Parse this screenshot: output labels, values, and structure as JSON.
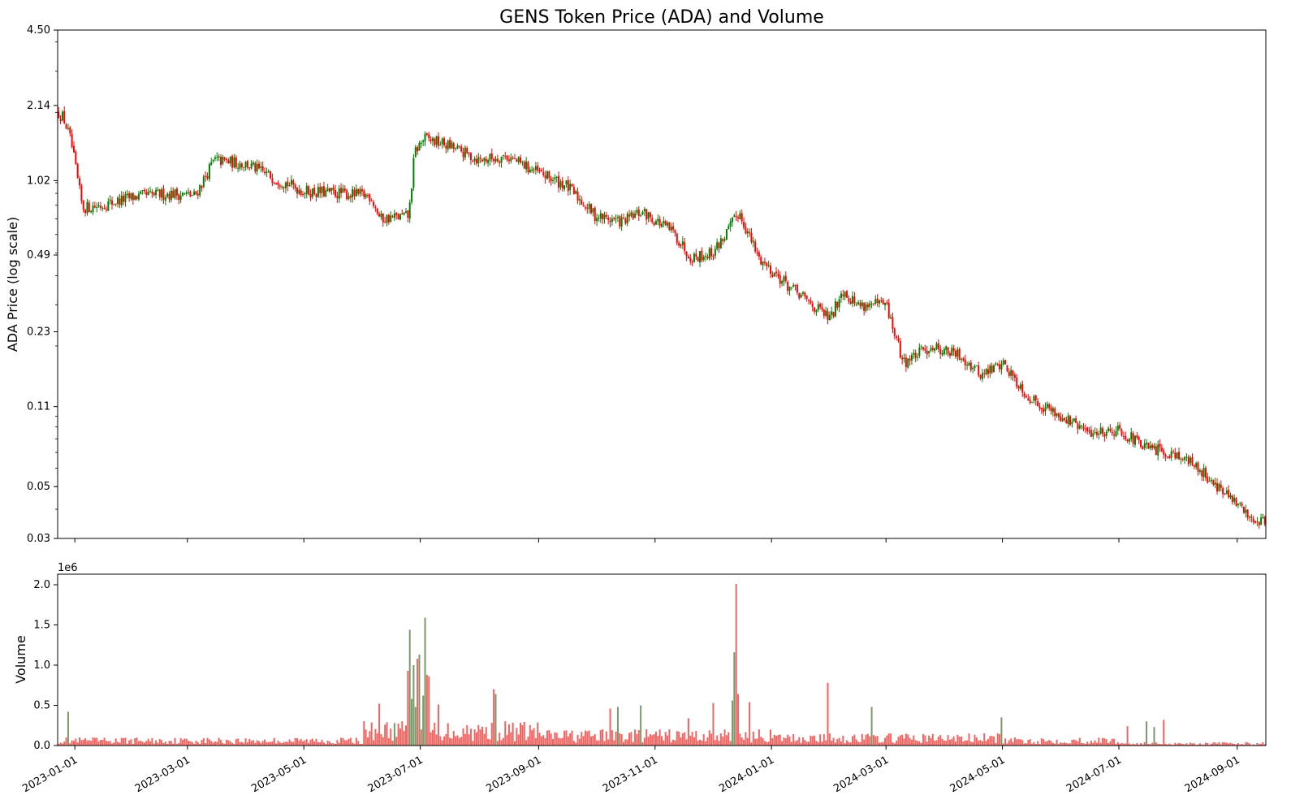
{
  "chart_data": [
    {
      "type": "candlestick",
      "title": "GENS Token Price (ADA) and Volume",
      "ylabel": "ADA Price (log scale)",
      "yscale": "log",
      "ylim": [
        0.03,
        4.5
      ],
      "yticks": [
        "0.03",
        "0.05",
        "0.11",
        "0.23",
        "0.49",
        "1.02",
        "2.14",
        "4.50"
      ],
      "xlim": [
        "2022-12-23",
        "2024-09-16"
      ],
      "xticks": [
        "2023-01-01",
        "2023-03-01",
        "2023-05-01",
        "2023-07-01",
        "2023-09-01",
        "2023-11-01",
        "2024-01-01",
        "2024-03-01",
        "2024-05-01",
        "2024-07-01",
        "2024-09-01"
      ],
      "up_color": "#008000",
      "down_color": "#ff0000",
      "trend": {
        "x": [
          "2022-12-23",
          "2022-12-26",
          "2022-12-30",
          "2023-01-05",
          "2023-01-15",
          "2023-02-01",
          "2023-02-20",
          "2023-03-05",
          "2023-03-15",
          "2023-04-01",
          "2023-04-10",
          "2023-05-01",
          "2023-05-20",
          "2023-06-05",
          "2023-06-10",
          "2023-06-25",
          "2023-06-28",
          "2023-07-03",
          "2023-07-15",
          "2023-08-01",
          "2023-08-15",
          "2023-09-01",
          "2023-09-15",
          "2023-10-01",
          "2023-10-15",
          "2023-10-25",
          "2023-11-10",
          "2023-11-20",
          "2023-12-01",
          "2023-12-08",
          "2023-12-15",
          "2023-12-25",
          "2024-01-10",
          "2024-02-01",
          "2024-02-07",
          "2024-02-15",
          "2024-03-01",
          "2024-03-10",
          "2024-03-25",
          "2024-04-10",
          "2024-04-20",
          "2024-05-01",
          "2024-05-15",
          "2024-06-01",
          "2024-06-15",
          "2024-07-01",
          "2024-07-15",
          "2024-08-01",
          "2024-08-15",
          "2024-08-25",
          "2024-09-05",
          "2024-09-10",
          "2024-09-16"
        ],
        "y": [
          2.0,
          1.9,
          1.5,
          0.78,
          0.8,
          0.87,
          0.9,
          0.88,
          1.25,
          1.2,
          1.1,
          0.92,
          0.9,
          0.88,
          0.7,
          0.72,
          1.35,
          1.55,
          1.45,
          1.25,
          1.3,
          1.1,
          0.98,
          0.72,
          0.68,
          0.75,
          0.62,
          0.48,
          0.5,
          0.6,
          0.75,
          0.48,
          0.36,
          0.26,
          0.35,
          0.3,
          0.3,
          0.17,
          0.2,
          0.18,
          0.15,
          0.17,
          0.12,
          0.1,
          0.085,
          0.088,
          0.073,
          0.069,
          0.057,
          0.047,
          0.039,
          0.036,
          0.036
        ]
      }
    },
    {
      "type": "bar",
      "ylabel": "Volume",
      "scale_label": "1e6",
      "yticks": [
        "0.0",
        "0.5",
        "1.0",
        "1.5",
        "2.0"
      ],
      "ylim": [
        0,
        2100000
      ],
      "xlim": [
        "2022-12-23",
        "2024-09-16"
      ],
      "xticks": [
        "2023-01-01",
        "2023-03-01",
        "2023-05-01",
        "2023-07-01",
        "2023-09-01",
        "2023-11-01",
        "2024-01-01",
        "2024-03-01",
        "2024-05-01",
        "2024-07-01",
        "2024-09-01"
      ],
      "down_color": "#ef5350",
      "up_color": "#6b8e5a",
      "baseline": 60000,
      "spikes": [
        {
          "x": "2022-12-28",
          "value": 420000
        },
        {
          "x": "2023-06-09",
          "value": 520000
        },
        {
          "x": "2023-06-17",
          "value": 280000
        },
        {
          "x": "2023-06-24",
          "value": 930000
        },
        {
          "x": "2023-06-25",
          "value": 1440000
        },
        {
          "x": "2023-06-26",
          "value": 580000
        },
        {
          "x": "2023-06-27",
          "value": 1000000
        },
        {
          "x": "2023-06-28",
          "value": 480000
        },
        {
          "x": "2023-06-29",
          "value": 1080000
        },
        {
          "x": "2023-06-30",
          "value": 1130000
        },
        {
          "x": "2023-07-02",
          "value": 620000
        },
        {
          "x": "2023-07-03",
          "value": 1590000
        },
        {
          "x": "2023-07-04",
          "value": 880000
        },
        {
          "x": "2023-07-05",
          "value": 860000
        },
        {
          "x": "2023-07-10",
          "value": 510000
        },
        {
          "x": "2023-08-08",
          "value": 700000
        },
        {
          "x": "2023-08-09",
          "value": 640000
        },
        {
          "x": "2023-10-08",
          "value": 460000
        },
        {
          "x": "2023-10-12",
          "value": 480000
        },
        {
          "x": "2023-10-24",
          "value": 500000
        },
        {
          "x": "2023-11-18",
          "value": 340000
        },
        {
          "x": "2023-12-01",
          "value": 530000
        },
        {
          "x": "2023-12-11",
          "value": 560000
        },
        {
          "x": "2023-12-12",
          "value": 1160000
        },
        {
          "x": "2023-12-13",
          "value": 2010000
        },
        {
          "x": "2023-12-14",
          "value": 640000
        },
        {
          "x": "2023-12-20",
          "value": 540000
        },
        {
          "x": "2024-01-30",
          "value": 780000
        },
        {
          "x": "2024-02-22",
          "value": 480000
        },
        {
          "x": "2024-04-30",
          "value": 350000
        },
        {
          "x": "2024-07-05",
          "value": 240000
        },
        {
          "x": "2024-07-15",
          "value": 300000
        },
        {
          "x": "2024-07-19",
          "value": 230000
        },
        {
          "x": "2024-07-24",
          "value": 320000
        }
      ]
    }
  ]
}
